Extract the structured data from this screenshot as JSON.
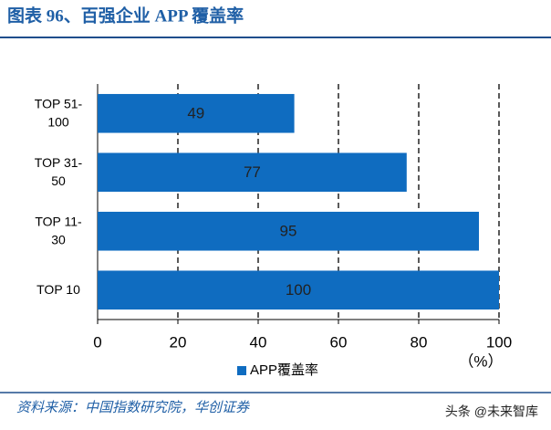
{
  "chart_data": {
    "type": "bar",
    "orientation": "horizontal",
    "title": "图表 96、百强企业 APP 覆盖率",
    "categories": [
      "TOP 51-\n100",
      "TOP 31-\n50",
      "TOP 11-\n30",
      "TOP 10"
    ],
    "series": [
      {
        "name": "APP覆盖率",
        "color": "#0f6cc0",
        "values": [
          49,
          77,
          95,
          100
        ]
      }
    ],
    "xlim": [
      0,
      100
    ],
    "xticks": [
      0,
      20,
      40,
      60,
      80,
      100
    ],
    "grid": true,
    "unit_label": "（%）",
    "source": "资料来源：中国指数研究院，华创证券",
    "watermark": "头条 @未来智库"
  }
}
